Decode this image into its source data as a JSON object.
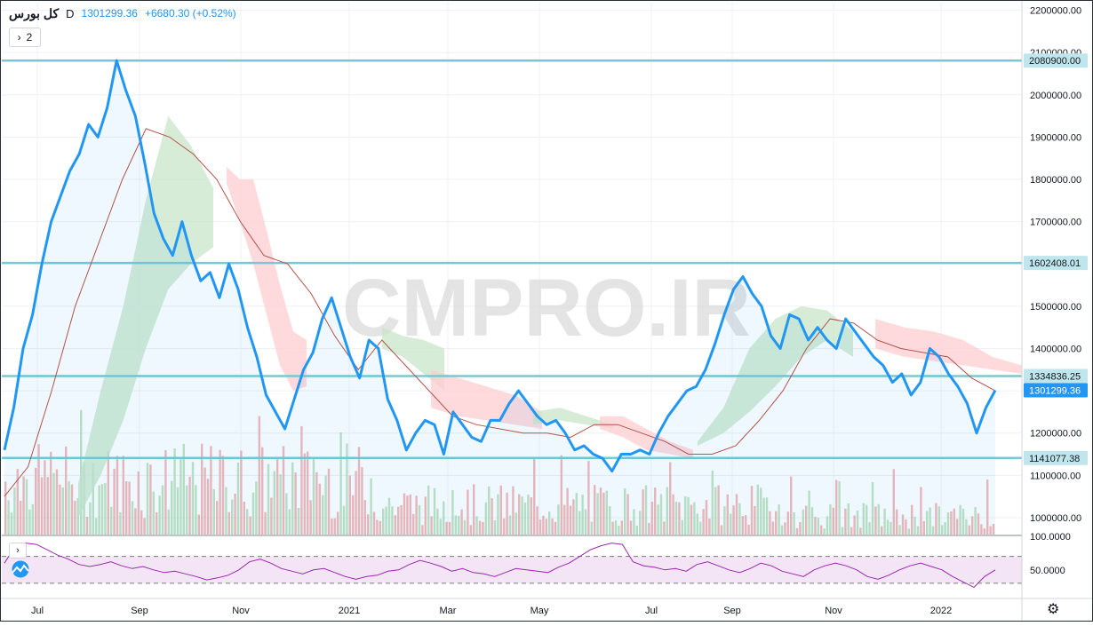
{
  "header": {
    "symbol": "کل بورس",
    "interval": "D",
    "last": "1301299.36",
    "change": "+6680.30 (+0.52%)",
    "collapsed_count": "2"
  },
  "watermark": "CMPRO.IR",
  "colors": {
    "price": "#2196f3",
    "hline": "#78c7d6",
    "kijun": "#b5524a",
    "cloud_bull": "#c8e6c9",
    "cloud_bear": "#ffcdd2",
    "vol_up": "#a5d6a7",
    "vol_down": "#ef9a9a",
    "rsi": "#9c27b0",
    "rsi_band": "#f3e5f5"
  },
  "chart_data": [
    {
      "type": "line",
      "title": "کل بورس",
      "interval": "D",
      "ylim": [
        960000,
        2220000
      ],
      "y_ticks": [
        1000000,
        1100000,
        1200000,
        1300000,
        1400000,
        1500000,
        1600000,
        1700000,
        1800000,
        1900000,
        2000000,
        2100000,
        2200000
      ],
      "y_tick_labels": [
        "1000000.00",
        "1100000.00",
        "1200000.00",
        "1300000.00",
        "1400000.00",
        "1500000.00",
        "1600000.00",
        "1700000.00",
        "1800000.00",
        "1900000.00",
        "2000000.00",
        "2100000.00",
        "2200000.00"
      ],
      "x_tick_labels": [
        "Jul",
        "Sep",
        "Nov",
        "2021",
        "Mar",
        "May",
        "Jul",
        "Sep",
        "Nov",
        "2022"
      ],
      "horizontal_levels": [
        {
          "value": 2080900.0,
          "label": "2080900.00"
        },
        {
          "value": 1602408.01,
          "label": "1602408.01"
        },
        {
          "value": 1334836.25,
          "label": "1334836.25"
        },
        {
          "value": 1141077.38,
          "label": "1141077.38"
        }
      ],
      "last_price_label": "1301299.36",
      "series": [
        {
          "values": [
            1160000,
            1260000,
            1400000,
            1480000,
            1600000,
            1700000,
            1760000,
            1820000,
            1860000,
            1930000,
            1900000,
            1970000,
            2080900,
            2010000,
            1950000,
            1840000,
            1720000,
            1660000,
            1620000,
            1700000,
            1620000,
            1560000,
            1580000,
            1520000,
            1600000,
            1540000,
            1450000,
            1380000,
            1290000,
            1250000,
            1210000,
            1280000,
            1350000,
            1390000,
            1470000,
            1520000,
            1450000,
            1380000,
            1330000,
            1420000,
            1400000,
            1280000,
            1230000,
            1160000,
            1200000,
            1230000,
            1220000,
            1150000,
            1250000,
            1220000,
            1190000,
            1180000,
            1230000,
            1230000,
            1270000,
            1300000,
            1270000,
            1240000,
            1220000,
            1230000,
            1200000,
            1160000,
            1170000,
            1150000,
            1140000,
            1110000,
            1150000,
            1150000,
            1160000,
            1150000,
            1200000,
            1240000,
            1270000,
            1300000,
            1310000,
            1350000,
            1410000,
            1480000,
            1540000,
            1570000,
            1530000,
            1500000,
            1430000,
            1400000,
            1480000,
            1470000,
            1420000,
            1450000,
            1420000,
            1400000,
            1470000,
            1440000,
            1410000,
            1380000,
            1360000,
            1320000,
            1340000,
            1290000,
            1320000,
            1400000,
            1380000,
            1340000,
            1310000,
            1270000,
            1200000,
            1260000,
            1301299
          ]
        }
      ],
      "kijun_values": [
        1050000,
        1120000,
        1300000,
        1500000,
        1650000,
        1800000,
        1920000,
        1900000,
        1860000,
        1800000,
        1700000,
        1620000,
        1600000,
        1530000,
        1430000,
        1350000,
        1420000,
        1360000,
        1300000,
        1240000,
        1220000,
        1210000,
        1200000,
        1200000,
        1190000,
        1220000,
        1220000,
        1200000,
        1180000,
        1150000,
        1150000,
        1170000,
        1230000,
        1300000,
        1400000,
        1470000,
        1460000,
        1420000,
        1400000,
        1390000,
        1380000,
        1330000,
        1300000
      ],
      "ichimoku_cloud_segments": [
        {
          "trend": "bull",
          "upper": [
            1080000,
            1300000,
            1500000,
            1750000,
            1950000,
            1880000,
            1780000
          ],
          "lower": [
            1000000,
            1100000,
            1230000,
            1400000,
            1540000,
            1600000,
            1640000
          ]
        },
        {
          "trend": "bear",
          "upper": [
            1830000,
            1800000,
            1800000,
            1680000,
            1550000,
            1440000,
            1420000
          ],
          "lower": [
            1790000,
            1700000,
            1600000,
            1480000,
            1360000,
            1300000,
            1310000
          ]
        },
        {
          "trend": "bull",
          "upper": [
            1450000,
            1430000,
            1420000,
            1400000
          ],
          "lower": [
            1400000,
            1380000,
            1340000,
            1300000
          ]
        },
        {
          "trend": "bear",
          "upper": [
            1350000,
            1330000,
            1310000,
            1290000,
            1250000
          ],
          "lower": [
            1260000,
            1240000,
            1230000,
            1220000,
            1210000
          ]
        },
        {
          "trend": "bull",
          "upper": [
            1250000,
            1260000,
            1240000,
            1220000
          ],
          "lower": [
            1220000,
            1230000,
            1220000,
            1210000
          ]
        },
        {
          "trend": "bear",
          "upper": [
            1240000,
            1240000,
            1210000,
            1180000,
            1160000
          ],
          "lower": [
            1210000,
            1190000,
            1160000,
            1150000,
            1140000
          ]
        },
        {
          "trend": "bull",
          "upper": [
            1180000,
            1260000,
            1400000,
            1470000,
            1500000,
            1490000,
            1440000
          ],
          "lower": [
            1170000,
            1200000,
            1250000,
            1310000,
            1380000,
            1420000,
            1380000
          ]
        },
        {
          "trend": "bear",
          "upper": [
            1470000,
            1450000,
            1440000,
            1420000,
            1380000,
            1360000
          ],
          "lower": [
            1400000,
            1380000,
            1370000,
            1360000,
            1350000,
            1340000
          ]
        }
      ]
    },
    {
      "type": "line",
      "title": "RSI",
      "ylim": [
        10,
        100
      ],
      "y_tick_labels": [
        "100.0000",
        "50.0000"
      ],
      "band": [
        30,
        70
      ],
      "series": [
        {
          "values": [
            60,
            85,
            90,
            88,
            80,
            72,
            66,
            58,
            55,
            58,
            62,
            56,
            52,
            55,
            50,
            46,
            48,
            44,
            40,
            35,
            38,
            42,
            50,
            62,
            66,
            60,
            52,
            48,
            44,
            50,
            52,
            46,
            40,
            36,
            40,
            42,
            48,
            50,
            58,
            64,
            60,
            55,
            48,
            52,
            46,
            44,
            40,
            46,
            52,
            50,
            48,
            46,
            54,
            60,
            70,
            80,
            86,
            90,
            88,
            62,
            56,
            54,
            50,
            52,
            48,
            58,
            62,
            56,
            50,
            46,
            52,
            60,
            56,
            48,
            44,
            40,
            50,
            56,
            60,
            56,
            50,
            40,
            36,
            42,
            50,
            56,
            60,
            55,
            50,
            40,
            32,
            24,
            40,
            50
          ]
        }
      ]
    }
  ]
}
